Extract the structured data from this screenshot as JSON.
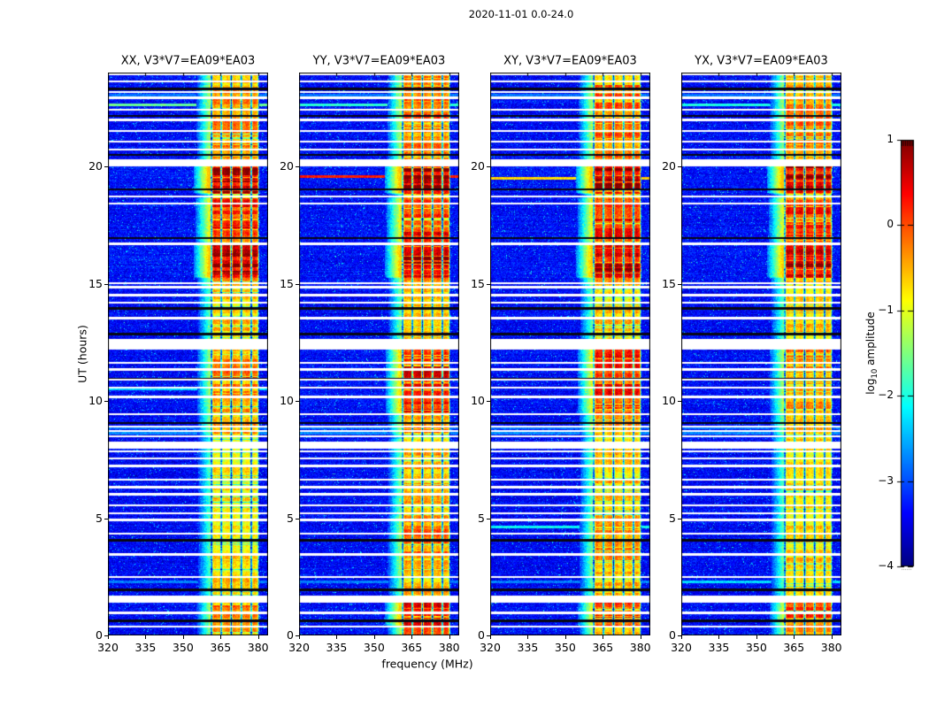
{
  "figure": {
    "title": "2020-11-01 0.0-24.0"
  },
  "axes": {
    "xlabel": "frequency (MHz)",
    "ylabel": "UT (hours)",
    "xticks": [
      320,
      335,
      350,
      365,
      380
    ],
    "yticks": [
      0,
      5,
      10,
      15,
      20
    ]
  },
  "colorbar": {
    "label_pre": "log",
    "label_sub": "10",
    "label_post": " amplitude",
    "ticks": [
      1,
      0,
      -1,
      -2,
      -3,
      -4
    ],
    "vmin": -4,
    "vmax": 1,
    "cmap": "jet"
  },
  "chart_data": {
    "type": "heatmap",
    "title": "2020-11-01 0.0-24.0",
    "xlabel": "frequency (MHz)",
    "ylabel": "UT (hours)",
    "x_range_mhz": [
      320,
      384
    ],
    "y_range_hours": [
      0,
      24
    ],
    "colormap": "jet",
    "color_scale": {
      "label": "log10 amplitude",
      "vmin": -4,
      "vmax": 1
    },
    "panels": [
      {
        "id": "XX",
        "title": "XX, V3*V7=EA09*EA03"
      },
      {
        "id": "YY",
        "title": "YY, V3*V7=EA09*EA03"
      },
      {
        "id": "XY",
        "title": "XY, V3*V7=EA09*EA03"
      },
      {
        "id": "YX",
        "title": "YX, V3*V7=EA09*EA03"
      }
    ],
    "noise_floor_log10_amp": -3.4,
    "rfi_band_mhz": [
      361,
      380.5
    ],
    "band_transition_mhz": [
      356,
      361
    ],
    "subband_notches_mhz": [
      361.4,
      365.3,
      369.3,
      373.3,
      377.3,
      380.4
    ],
    "hot_intervals": [
      {
        "t": [
          23.5,
          24.0
        ],
        "amps": [
          0.45,
          0.5,
          0.45,
          0.45
        ]
      },
      {
        "t": [
          21.2,
          23.45
        ],
        "amps": [
          0.55,
          0.58,
          0.55,
          0.52
        ]
      },
      {
        "t": [
          20.3,
          21.15
        ],
        "amps": [
          0.5,
          0.55,
          0.52,
          0.5
        ]
      },
      {
        "t": [
          18.88,
          20.08
        ],
        "amps": [
          1.0,
          1.0,
          1.0,
          1.0
        ]
      },
      {
        "t": [
          16.8,
          18.62
        ],
        "amps": [
          0.72,
          0.75,
          0.73,
          0.7
        ]
      },
      {
        "t": [
          15.28,
          16.65
        ],
        "amps": [
          0.95,
          0.97,
          0.95,
          0.92
        ]
      },
      {
        "t": [
          14.95,
          15.2
        ],
        "amps": [
          0.5,
          0.5,
          0.5,
          0.5
        ]
      },
      {
        "t": [
          12.7,
          14.88
        ],
        "amps": [
          0.35,
          0.42,
          0.38,
          0.35
        ]
      },
      {
        "t": [
          9.5,
          12.38
        ],
        "amps": [
          0.5,
          0.85,
          0.72,
          0.55
        ]
      },
      {
        "t": [
          8.6,
          9.35
        ],
        "amps": [
          0.45,
          0.55,
          0.5,
          0.45
        ]
      },
      {
        "t": [
          5.15,
          8.35
        ],
        "amps": [
          0.3,
          0.42,
          0.38,
          0.32
        ]
      },
      {
        "t": [
          2.55,
          5.1
        ],
        "amps": [
          0.32,
          0.52,
          0.45,
          0.35
        ]
      },
      {
        "t": [
          1.75,
          2.45
        ],
        "amps": [
          0.35,
          0.42,
          0.38,
          0.35
        ]
      },
      {
        "t": [
          0.45,
          1.5
        ],
        "amps": [
          0.52,
          0.92,
          0.7,
          0.62
        ]
      },
      {
        "t": [
          0.0,
          0.4
        ],
        "amps": [
          0.45,
          0.58,
          0.5,
          0.48
        ]
      }
    ],
    "gap_rows": [
      [
        23.93,
        0.06
      ],
      [
        23.62,
        0.1
      ],
      [
        23.18,
        0.08
      ],
      [
        22.92,
        0.1
      ],
      [
        22.42,
        0.08
      ],
      [
        21.98,
        0.1
      ],
      [
        21.52,
        0.08
      ],
      [
        21.06,
        0.1
      ],
      [
        20.72,
        0.08
      ],
      [
        20.15,
        0.28
      ],
      [
        18.72,
        0.1
      ],
      [
        18.42,
        0.08
      ],
      [
        16.7,
        0.1
      ],
      [
        15.02,
        0.08
      ],
      [
        14.85,
        0.08
      ],
      [
        14.52,
        0.1
      ],
      [
        14.18,
        0.08
      ],
      [
        13.52,
        0.1
      ],
      [
        12.4,
        0.45
      ],
      [
        11.62,
        0.08
      ],
      [
        11.35,
        0.1
      ],
      [
        10.92,
        0.08
      ],
      [
        10.55,
        0.08
      ],
      [
        10.18,
        0.1
      ],
      [
        9.42,
        0.08
      ],
      [
        8.92,
        0.08
      ],
      [
        8.72,
        0.08
      ],
      [
        8.5,
        0.08
      ],
      [
        8.1,
        0.3
      ],
      [
        7.85,
        0.1
      ],
      [
        7.55,
        0.08
      ],
      [
        7.22,
        0.1
      ],
      [
        6.65,
        0.08
      ],
      [
        6.32,
        0.08
      ],
      [
        6.02,
        0.1
      ],
      [
        5.55,
        0.08
      ],
      [
        5.22,
        0.08
      ],
      [
        4.92,
        0.1
      ],
      [
        4.35,
        0.08
      ],
      [
        3.45,
        0.1
      ],
      [
        2.48,
        0.08
      ],
      [
        1.55,
        0.32
      ],
      [
        0.95,
        0.1
      ],
      [
        0.38,
        0.08
      ]
    ],
    "dark_rows": [
      23.3,
      22.15,
      20.5,
      19.02,
      16.95,
      13.95,
      12.85,
      10.95,
      9.05,
      4.05,
      1.95,
      0.62
    ],
    "textured_rows": [
      [
        8.62,
        -2.7
      ],
      [
        8.85,
        -2.8
      ],
      [
        2.28,
        -2.75
      ],
      [
        23.05,
        -2.8
      ]
    ],
    "streak_rows": {
      "XX": [
        [
          22.62,
          -1.6
        ],
        [
          10.5,
          -2.3
        ]
      ],
      "YY": [
        [
          19.55,
          0.25
        ],
        [
          22.62,
          -1.9
        ]
      ],
      "XY": [
        [
          19.5,
          -0.7
        ],
        [
          4.62,
          -2.1
        ]
      ],
      "YX": [
        [
          22.62,
          -2.0
        ],
        [
          2.3,
          -2.3
        ]
      ]
    }
  }
}
